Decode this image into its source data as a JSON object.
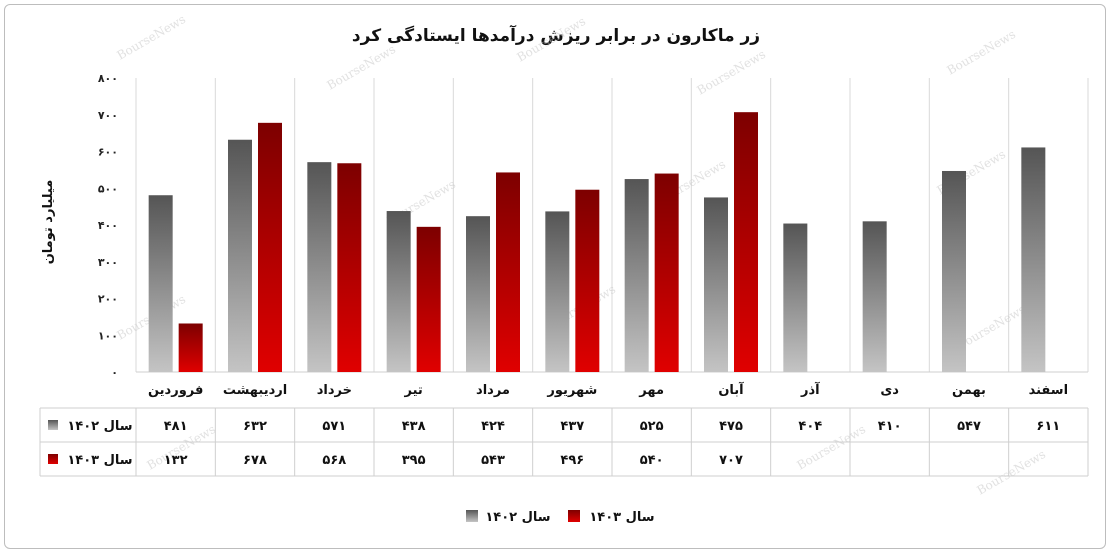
{
  "chart_data": {
    "type": "bar",
    "title": "زر ماکارون در برابر ریزش درآمدها ایستادگی کرد",
    "ylabel": "میلیارد تومان",
    "ylim": [
      0,
      800
    ],
    "yticks": [
      "۰",
      "۱۰۰",
      "۲۰۰",
      "۳۰۰",
      "۴۰۰",
      "۵۰۰",
      "۶۰۰",
      "۷۰۰",
      "۸۰۰"
    ],
    "categories": [
      "اسفند",
      "بهمن",
      "دی",
      "آذر",
      "آبان",
      "مهر",
      "شهریور",
      "مرداد",
      "تیر",
      "خرداد",
      "اردیبهشت",
      "فروردین"
    ],
    "series": [
      {
        "name": "سال ۱۴۰۲",
        "color": "#7a7a7a",
        "values": [
          611,
          547,
          410,
          404,
          475,
          525,
          437,
          424,
          438,
          571,
          632,
          481
        ],
        "labels": [
          "۶۱۱",
          "۵۴۷",
          "۴۱۰",
          "۴۰۴",
          "۴۷۵",
          "۵۲۵",
          "۴۳۷",
          "۴۲۴",
          "۴۳۸",
          "۵۷۱",
          "۶۳۲",
          "۴۸۱"
        ]
      },
      {
        "name": "سال ۱۴۰۳",
        "color": "#b30000",
        "values": [
          null,
          null,
          null,
          null,
          707,
          540,
          496,
          543,
          395,
          568,
          678,
          132
        ],
        "labels": [
          "",
          "",
          "",
          "",
          "۷۰۷",
          "۵۴۰",
          "۴۹۶",
          "۵۴۳",
          "۳۹۵",
          "۵۶۸",
          "۶۷۸",
          "۱۳۲"
        ]
      }
    ],
    "legend": "bottom",
    "grid": "vertical category separators"
  },
  "watermark": "BourseNews"
}
